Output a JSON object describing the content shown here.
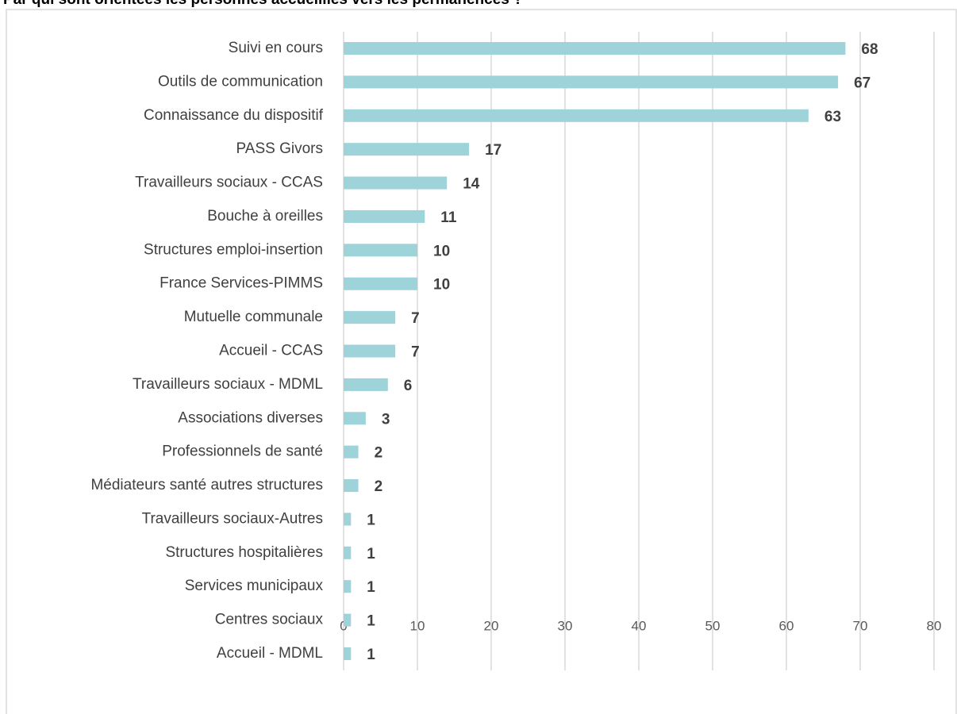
{
  "chart_data": {
    "type": "barh",
    "title": "Par qui sont orientées les personnes accueillies vers les permanences ?",
    "categories": [
      "Suivi en cours",
      "Outils de communication",
      "Connaissance du dispositif",
      "PASS Givors",
      "Travailleurs sociaux - CCAS",
      "Bouche à oreilles",
      "Structures emploi-insertion",
      "France Services-PIMMS",
      "Mutuelle communale",
      "Accueil - CCAS",
      "Travailleurs sociaux - MDML",
      "Associations diverses",
      "Professionnels de santé",
      "Médiateurs santé autres structures",
      "Travailleurs sociaux-Autres",
      "Structures hospitalières",
      "Services municipaux",
      "Centres sociaux",
      "Accueil - MDML"
    ],
    "values": [
      68,
      67,
      63,
      17,
      14,
      11,
      10,
      10,
      7,
      7,
      6,
      3,
      2,
      2,
      1,
      1,
      1,
      1,
      1
    ],
    "color": "#9dd3d9",
    "xlim": [
      0,
      80
    ],
    "xticks": [
      0,
      10,
      20,
      30,
      40,
      50,
      60,
      70,
      80
    ],
    "grid": true
  }
}
